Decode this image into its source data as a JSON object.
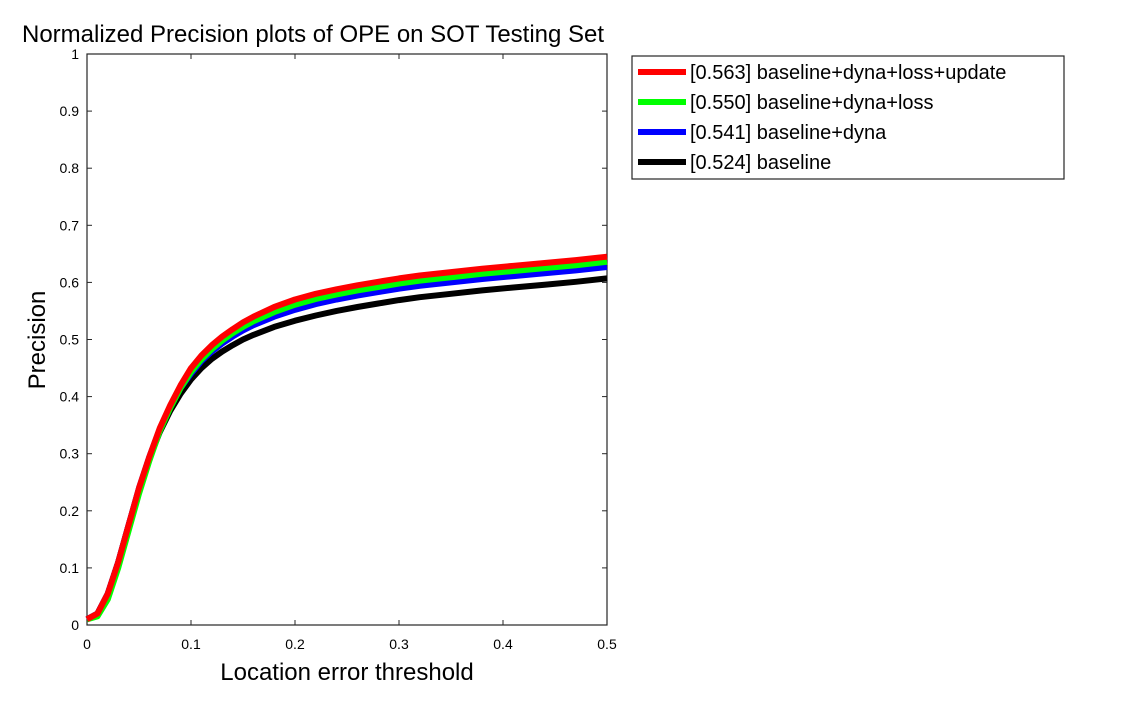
{
  "chart_data": {
    "type": "line",
    "title": "Normalized Precision plots of OPE on SOT Testing Set",
    "xlabel": "Location error threshold",
    "ylabel": "Precision",
    "xlim": [
      0,
      0.5
    ],
    "ylim": [
      0,
      1
    ],
    "x_ticks": [
      "0",
      "0.1",
      "0.2",
      "0.3",
      "0.4",
      "0.5"
    ],
    "y_ticks": [
      "0",
      "0.1",
      "0.2",
      "0.3",
      "0.4",
      "0.5",
      "0.6",
      "0.7",
      "0.8",
      "0.9",
      "1"
    ],
    "grid": false,
    "legend_position": "outside-top-right",
    "x": [
      0,
      0.01,
      0.02,
      0.03,
      0.04,
      0.05,
      0.06,
      0.07,
      0.08,
      0.09,
      0.1,
      0.11,
      0.12,
      0.13,
      0.14,
      0.15,
      0.16,
      0.18,
      0.2,
      0.22,
      0.24,
      0.26,
      0.28,
      0.3,
      0.32,
      0.35,
      0.38,
      0.41,
      0.44,
      0.47,
      0.5
    ],
    "series": [
      {
        "name": "[0.563] baseline+dyna+loss+update",
        "color": "#ff0000",
        "values": [
          0.01,
          0.02,
          0.055,
          0.11,
          0.175,
          0.24,
          0.295,
          0.345,
          0.385,
          0.42,
          0.45,
          0.472,
          0.49,
          0.505,
          0.518,
          0.53,
          0.54,
          0.557,
          0.57,
          0.58,
          0.588,
          0.595,
          0.601,
          0.607,
          0.612,
          0.618,
          0.624,
          0.629,
          0.634,
          0.639,
          0.645
        ]
      },
      {
        "name": "[0.550] baseline+dyna+loss",
        "color": "#00ff00",
        "values": [
          0.01,
          0.015,
          0.045,
          0.1,
          0.165,
          0.23,
          0.288,
          0.34,
          0.38,
          0.415,
          0.443,
          0.465,
          0.483,
          0.498,
          0.511,
          0.522,
          0.532,
          0.548,
          0.561,
          0.571,
          0.579,
          0.586,
          0.592,
          0.598,
          0.603,
          0.609,
          0.615,
          0.62,
          0.625,
          0.63,
          0.636
        ]
      },
      {
        "name": "[0.541] baseline+dyna",
        "color": "#0000ff",
        "values": [
          0.01,
          0.02,
          0.055,
          0.11,
          0.175,
          0.24,
          0.295,
          0.343,
          0.382,
          0.415,
          0.44,
          0.462,
          0.479,
          0.493,
          0.505,
          0.516,
          0.525,
          0.54,
          0.552,
          0.562,
          0.57,
          0.577,
          0.583,
          0.589,
          0.594,
          0.6,
          0.606,
          0.611,
          0.616,
          0.621,
          0.627
        ]
      },
      {
        "name": "[0.524] baseline",
        "color": "#000000",
        "values": [
          0.01,
          0.02,
          0.055,
          0.11,
          0.175,
          0.238,
          0.292,
          0.338,
          0.375,
          0.405,
          0.43,
          0.45,
          0.466,
          0.479,
          0.49,
          0.5,
          0.508,
          0.522,
          0.533,
          0.542,
          0.55,
          0.557,
          0.563,
          0.569,
          0.574,
          0.58,
          0.586,
          0.591,
          0.596,
          0.601,
          0.607
        ]
      }
    ]
  }
}
